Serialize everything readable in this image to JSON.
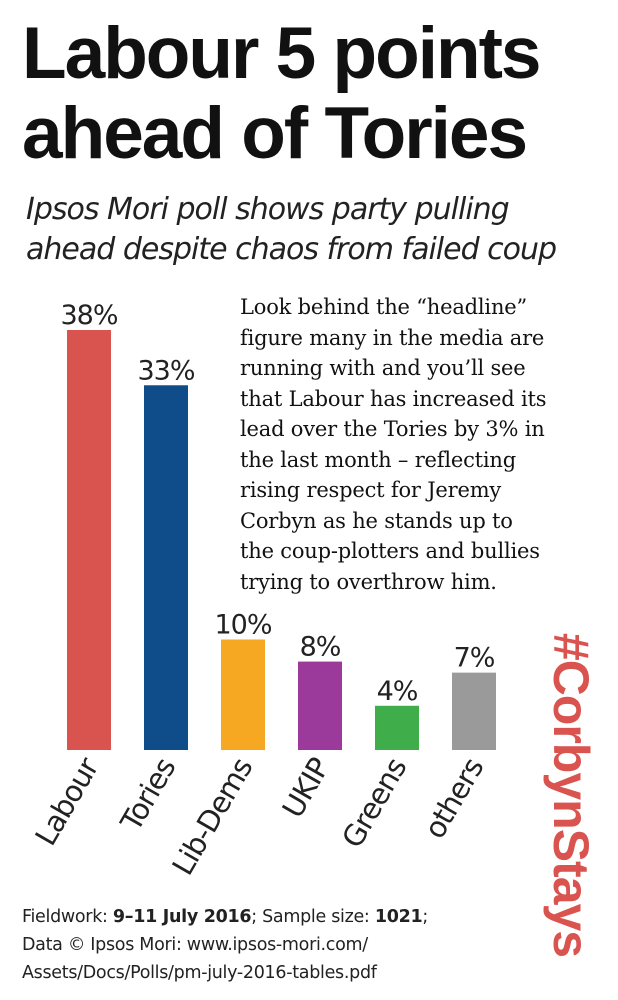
{
  "headline": {
    "line1": "Labour 5 points",
    "line2": "ahead of Tories"
  },
  "subtitle": {
    "line1": "Ipsos Mori poll shows party pulling",
    "line2": "ahead despite chaos from failed coup"
  },
  "body_text": {
    "lines": [
      "Look behind the “headline”",
      "figure many in the media are",
      "running with and you’ll see",
      "that Labour has increased its",
      "lead over the Tories by 3% in",
      "the last month – reflecting",
      "rising respect for Jeremy",
      "Corbyn as he stands up to",
      "the coup-plotters and bullies",
      "trying to overthrow him."
    ]
  },
  "hashtag": "#CorbynStays",
  "footer": {
    "fieldwork_label": "Fieldwork:",
    "fieldwork_value": "9–11 July 2016",
    "sample_label": "; Sample size:",
    "sample_value": "1021",
    "sample_end": ";",
    "data_line": "Data © Ipsos Mori: www.ipsos-mori.com/",
    "url_line": "Assets/Docs/Polls/pm-july-2016-tables.pdf"
  },
  "chart_data": {
    "type": "bar",
    "categories": [
      "Labour",
      "Tories",
      "Lib-Dems",
      "UKIP",
      "Greens",
      "others"
    ],
    "values": [
      38,
      33,
      10,
      8,
      4,
      7
    ],
    "value_labels": [
      "38%",
      "33%",
      "10%",
      "8%",
      "4%",
      "7%"
    ],
    "colors": [
      "#d9534f",
      "#0f4c8a",
      "#f7a823",
      "#9b3a9a",
      "#3fad4a",
      "#9a9a9a"
    ],
    "ylim": [
      0,
      38
    ],
    "grid": false,
    "legend": "none"
  }
}
